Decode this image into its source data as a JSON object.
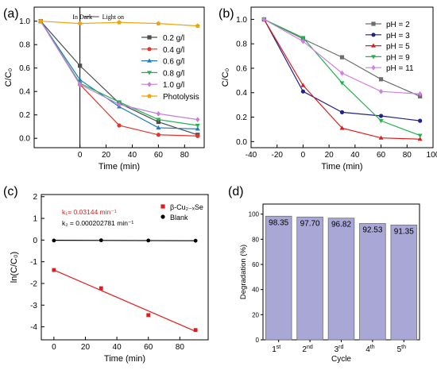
{
  "colors": {
    "c02": "#4d4d4d",
    "c04": "#e8322a",
    "c06": "#1f78c8",
    "c08": "#22b24c",
    "c10": "#c77ddb",
    "photolysis": "#f0a30a",
    "ph2": "#6d6d6d",
    "ph3": "#22238a",
    "ph5": "#e01b1b",
    "ph9": "#1fb34a",
    "ph11": "#d07de6",
    "fitRed": "#e31b1b",
    "blank": "#000000",
    "bar": "#a9a7d6",
    "barStroke": "#6e6e6e"
  },
  "chart_data": [
    {
      "id": "a",
      "panel_label": "(a)",
      "type": "line",
      "xlabel": "Time (min)",
      "ylabel": "C/C₀",
      "xlim": [
        -35,
        95
      ],
      "ylim": [
        -0.08,
        1.12
      ],
      "xticks": [
        0,
        20,
        40,
        60,
        80
      ],
      "yticks": [
        0.0,
        0.2,
        0.4,
        0.6,
        0.8,
        1.0
      ],
      "annotations": {
        "dark": "In Dark",
        "light": "Light on"
      },
      "vline_x": 0,
      "legend": "top-right",
      "series": [
        {
          "name": "0.2 g/l",
          "marker": "square",
          "color_key": "c02",
          "x": [
            -30,
            0,
            30,
            60,
            90
          ],
          "y": [
            1.0,
            0.62,
            0.3,
            0.14,
            0.03
          ]
        },
        {
          "name": "0.4 g/l",
          "marker": "circle",
          "color_key": "c04",
          "x": [
            -30,
            0,
            30,
            60,
            90
          ],
          "y": [
            1.0,
            0.46,
            0.11,
            0.03,
            0.02
          ]
        },
        {
          "name": "0.6 g/l",
          "marker": "triangle-up",
          "color_key": "c06",
          "x": [
            -30,
            0,
            30,
            60,
            90
          ],
          "y": [
            1.0,
            0.5,
            0.27,
            0.09,
            0.08
          ]
        },
        {
          "name": "0.8 g/l",
          "marker": "triangle-down",
          "color_key": "c08",
          "x": [
            -30,
            0,
            30,
            60,
            90
          ],
          "y": [
            1.0,
            0.47,
            0.31,
            0.16,
            0.11
          ]
        },
        {
          "name": "1.0 g/l",
          "marker": "diamond",
          "color_key": "c10",
          "x": [
            -30,
            0,
            30,
            60,
            90
          ],
          "y": [
            1.0,
            0.46,
            0.29,
            0.21,
            0.16
          ]
        },
        {
          "name": "Photolysis",
          "marker": "pentagon",
          "color_key": "photolysis",
          "x": [
            -30,
            0,
            30,
            60,
            90
          ],
          "y": [
            1.0,
            0.98,
            0.99,
            0.98,
            0.96
          ]
        }
      ]
    },
    {
      "id": "b",
      "panel_label": "(b)",
      "type": "line",
      "xlabel": "Time (min)",
      "ylabel": "C/C₀",
      "xlim": [
        -40,
        100
      ],
      "ylim": [
        -0.05,
        1.1
      ],
      "xticks": [
        -40,
        -20,
        0,
        20,
        40,
        60,
        80,
        100
      ],
      "yticks": [
        0.0,
        0.2,
        0.4,
        0.6,
        0.8,
        1.0
      ],
      "legend": "top-right",
      "series": [
        {
          "name": "pH = 2",
          "marker": "square",
          "color_key": "ph2",
          "x": [
            -30,
            0,
            30,
            60,
            90
          ],
          "y": [
            1.0,
            0.84,
            0.69,
            0.51,
            0.37
          ]
        },
        {
          "name": "pH = 3",
          "marker": "circle",
          "color_key": "ph3",
          "x": [
            -30,
            0,
            30,
            60,
            90
          ],
          "y": [
            1.0,
            0.41,
            0.24,
            0.21,
            0.17
          ]
        },
        {
          "name": "pH = 5",
          "marker": "triangle-up",
          "color_key": "ph5",
          "x": [
            -30,
            0,
            30,
            60,
            90
          ],
          "y": [
            1.0,
            0.46,
            0.11,
            0.03,
            0.02
          ]
        },
        {
          "name": "pH = 9",
          "marker": "triangle-down",
          "color_key": "ph9",
          "x": [
            -30,
            0,
            30,
            60,
            90
          ],
          "y": [
            1.0,
            0.85,
            0.48,
            0.17,
            0.05
          ]
        },
        {
          "name": "pH = 11",
          "marker": "diamond",
          "color_key": "ph11",
          "x": [
            -30,
            0,
            30,
            60,
            90
          ],
          "y": [
            1.0,
            0.82,
            0.56,
            0.41,
            0.39
          ]
        }
      ]
    },
    {
      "id": "c",
      "panel_label": "(c)",
      "type": "scatter",
      "xlabel": "Time (min)",
      "ylabel": "ln(C/C₀)",
      "xlim": [
        -8,
        98
      ],
      "ylim": [
        -4.6,
        2.1
      ],
      "xticks": [
        0,
        20,
        40,
        60,
        80
      ],
      "yticks": [
        -4,
        -3,
        -2,
        -1,
        0,
        1,
        2
      ],
      "legend": "top-right",
      "k1": "k₁= 0.03144 min⁻¹",
      "k2": "k₂ = 0.000202781 min⁻¹",
      "series": [
        {
          "name": "β-Cu₂₋ₓSe",
          "marker": "square",
          "color_key": "fitRed",
          "x": [
            0,
            30,
            60,
            90
          ],
          "y": [
            -1.38,
            -2.22,
            -3.46,
            -4.15
          ],
          "fit": {
            "x": [
              0,
              90
            ],
            "y": [
              -1.38,
              -4.21
            ]
          }
        },
        {
          "name": "Blank",
          "marker": "circle",
          "color_key": "blank",
          "x": [
            0,
            30,
            60,
            90
          ],
          "y": [
            -0.02,
            -0.01,
            -0.02,
            -0.03
          ],
          "fit": {
            "x": [
              0,
              90
            ],
            "y": [
              -0.01,
              -0.03
            ]
          }
        }
      ]
    },
    {
      "id": "d",
      "panel_label": "(d)",
      "type": "bar",
      "xlabel": "Cycle",
      "ylabel": "Degradation (%)",
      "ylim": [
        0,
        108
      ],
      "yticks": [
        0,
        20,
        40,
        60,
        80,
        100
      ],
      "categories": [
        {
          "base": "1",
          "sup": "st"
        },
        {
          "base": "2",
          "sup": "nd"
        },
        {
          "base": "3",
          "sup": "rd"
        },
        {
          "base": "4",
          "sup": "th"
        },
        {
          "base": "5",
          "sup": "th"
        }
      ],
      "values": [
        98.35,
        97.7,
        96.82,
        92.53,
        91.35
      ],
      "value_labels": [
        "98.35",
        "97.70",
        "96.82",
        "92.53",
        "91.35"
      ]
    }
  ]
}
